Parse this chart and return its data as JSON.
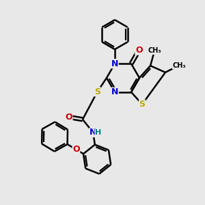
{
  "background_color": "#e8e8e8",
  "atom_colors": {
    "C": "#000000",
    "N": "#0000cc",
    "O": "#cc0000",
    "S": "#bbaa00",
    "H": "#008080"
  },
  "bond_color": "#000000",
  "bond_width": 1.8,
  "figsize": [
    3.0,
    3.0
  ],
  "dpi": 100,
  "xlim": [
    0,
    10
  ],
  "ylim": [
    0,
    10
  ]
}
